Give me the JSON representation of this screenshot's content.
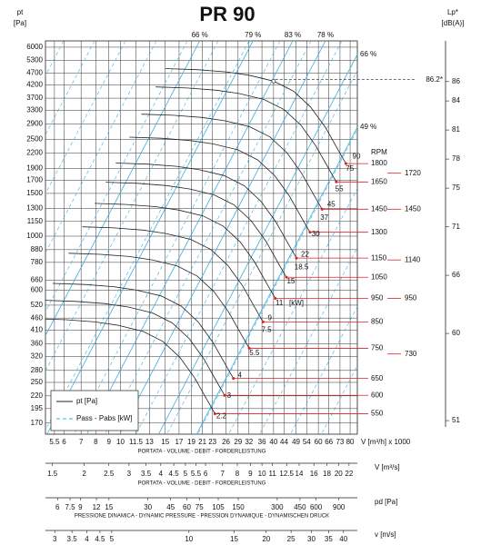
{
  "chart_data": {
    "type": "fan-curves",
    "title": "PR 90",
    "y_label": [
      "pt",
      "[Pa]"
    ],
    "x_label": "V [m³/h] x 1000",
    "x_subtitle": "PORTATA - VOLUME - DEBIT - FORDERLEISTUNG",
    "log_scale": true,
    "grid": true,
    "xlim": [
      5.07,
      85.4
    ],
    "xticks": [
      5.5,
      6,
      7,
      8,
      9,
      10,
      11.5,
      13,
      15,
      17,
      19,
      21,
      23,
      26,
      29,
      32,
      36,
      40,
      44,
      49,
      54,
      60,
      66,
      73,
      80
    ],
    "ylim": [
      153,
      6370
    ],
    "yticks": [
      6000,
      5300,
      4700,
      4200,
      3700,
      3300,
      2900,
      2500,
      2200,
      1900,
      1700,
      1500,
      1300,
      1150,
      1000,
      880,
      780,
      660,
      600,
      520,
      460,
      410,
      360,
      320,
      280,
      250,
      220,
      195,
      170
    ],
    "v_m3s_axis": {
      "label": "V [m³/s]",
      "lim": [
        1.408,
        23.72
      ],
      "ticks": [
        1.5,
        2,
        2.5,
        3,
        3.5,
        4,
        4.5,
        5,
        5.5,
        6,
        7,
        8,
        9,
        10,
        11,
        12.5,
        14,
        16,
        18,
        20,
        22
      ],
      "subtitle": "PORTATA - VOLUME - DEBIT - FORDERLEISTUNG"
    },
    "pd_axis": {
      "label": "pd [Pa]",
      "lim": [
        4.84,
        1250
      ],
      "ticks": [
        6,
        7.5,
        9,
        12,
        15,
        30,
        45,
        60,
        75,
        105,
        150,
        300,
        450,
        600,
        900
      ],
      "subtitle": "PRESSIONE DINAMICA - DYNAMIC PRESSURE - PRESSION DYNAMIQUE - DYNAMISCHEN DRUCK"
    },
    "v_axis": {
      "label": "v [m/s]",
      "lim": [
        2.76,
        45.3
      ],
      "ticks": [
        3,
        3.5,
        4,
        4.5,
        5,
        10,
        15,
        20,
        25,
        30,
        35,
        40
      ]
    },
    "lp_axis": {
      "label": [
        "Lp*",
        "[dB(A)]"
      ],
      "lim": [
        49.6,
        90.2
      ],
      "ticks": [
        86,
        84,
        81,
        78,
        75,
        71,
        66,
        60,
        51
      ],
      "note": {
        "value": 86.2,
        "label": "86.2*"
      }
    },
    "speed_label": "RPM",
    "speeds": [
      1800,
      1650,
      1450,
      1300,
      1150,
      1050,
      950,
      850,
      750,
      650,
      600,
      550
    ],
    "lp_speeds": [
      1720,
      1450,
      1140,
      950,
      730
    ],
    "power_label": "[kW]",
    "power_kw": [
      90,
      75,
      55,
      45,
      37,
      30,
      22,
      18.5,
      15,
      11,
      9,
      7.5,
      5.5,
      4,
      3,
      2.2
    ],
    "power_pt": [
      2130,
      1890,
      1560,
      1350,
      1190,
      1020,
      840,
      745,
      650,
      530,
      460,
      410,
      330,
      267,
      220,
      181
    ],
    "reference_curve": {
      "x": [
        15,
        20,
        26,
        32,
        40,
        48,
        56,
        64,
        72,
        77
      ],
      "y": [
        4900,
        4850,
        4750,
        4600,
        4350,
        3950,
        3400,
        2800,
        2250,
        1990
      ]
    },
    "efficiency_top": [
      {
        "value": 20.5,
        "label": "66 %"
      },
      {
        "value": 33.2,
        "label": "79 %"
      },
      {
        "value": 47.6,
        "label": "83 %"
      },
      {
        "value": 64,
        "label": "78 %"
      }
    ],
    "efficiency_right": [
      {
        "value": 5600,
        "label": "66 %"
      },
      {
        "value": 2810,
        "label": "49 %"
      }
    ],
    "legend": [
      "pt [Pa]",
      "Pass - Pabs [kW]"
    ],
    "colors": {
      "curve": "#222222",
      "system": "#3aaee0",
      "speed": "#e02020"
    }
  }
}
